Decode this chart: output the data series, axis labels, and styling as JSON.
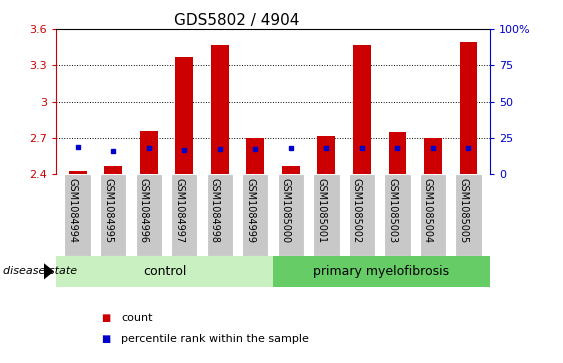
{
  "title": "GDS5802 / 4904",
  "samples": [
    "GSM1084994",
    "GSM1084995",
    "GSM1084996",
    "GSM1084997",
    "GSM1084998",
    "GSM1084999",
    "GSM1085000",
    "GSM1085001",
    "GSM1085002",
    "GSM1085003",
    "GSM1085004",
    "GSM1085005"
  ],
  "bar_heights": [
    2.43,
    2.47,
    2.76,
    3.37,
    3.47,
    2.7,
    2.47,
    2.72,
    3.47,
    2.75,
    2.7,
    3.49
  ],
  "blue_values": [
    2.625,
    2.595,
    2.62,
    2.6,
    2.61,
    2.61,
    2.62,
    2.62,
    2.62,
    2.62,
    2.62,
    2.62
  ],
  "ylim_left": [
    2.4,
    3.6
  ],
  "yticks_left": [
    2.4,
    2.7,
    3.0,
    3.3,
    3.6
  ],
  "ytick_labels_left": [
    "2.4",
    "2.7",
    "3",
    "3.3",
    "3.6"
  ],
  "ylim_right": [
    0,
    100
  ],
  "yticks_right": [
    0,
    25,
    50,
    75,
    100
  ],
  "ytick_labels_right": [
    "0",
    "25",
    "50",
    "75",
    "100%"
  ],
  "bar_color": "#cc0000",
  "blue_color": "#0000cc",
  "bar_width": 0.5,
  "bg_color_xtick": "#c8c8c8",
  "group_labels": [
    "control",
    "primary myelofibrosis"
  ],
  "group_colors": [
    "#c8f0c0",
    "#66cc66"
  ],
  "disease_state_label": "disease state",
  "legend_items": [
    "count",
    "percentile rank within the sample"
  ],
  "legend_colors": [
    "#cc0000",
    "#0000cc"
  ],
  "ylabel_left_color": "#cc0000",
  "ylabel_right_color": "#0000cc",
  "title_fontsize": 11,
  "tick_fontsize": 8,
  "legend_fontsize": 8,
  "sample_fontsize": 7
}
